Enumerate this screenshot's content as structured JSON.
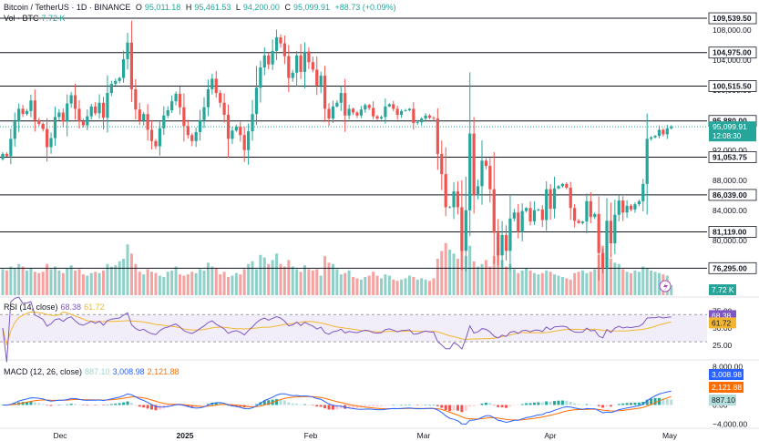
{
  "header": {
    "title": "Bitcoin / TetherUS · 1D · BINANCE",
    "o_label": "O",
    "o_value": "95,011.18",
    "h_label": "H",
    "h_value": "95,461.53",
    "l_label": "L",
    "l_value": "94,200.00",
    "c_label": "C",
    "c_value": "95,099.91",
    "change": "+88.73 (+0.09%)",
    "vol_label": "Vol · BTC",
    "vol_value": "7.72 K"
  },
  "rsi_legend": {
    "label": "RSI (14, close)",
    "v1": "68.38",
    "v2": "61.72"
  },
  "macd_legend": {
    "label": "MACD (12, 26, close)",
    "hist": "887.10",
    "macd": "3,008.98",
    "signal": "2,121.88"
  },
  "current_price": {
    "value": "95,099.91",
    "countdown": "12:08:30"
  },
  "colors": {
    "up": "#26a69a",
    "down": "#ef5350",
    "vol_up": "#8fd0c9",
    "vol_down": "#f4a3a1",
    "rsi": "#7e57c2",
    "rsi_ma": "#f2b632",
    "macd": "#2962ff",
    "signal": "#ff6d00"
  },
  "chart_data": [
    {
      "type": "candlestick",
      "title": "Bitcoin / TetherUS · 1D · BINANCE",
      "x_labels": [
        "Dec",
        "2025",
        "Feb",
        "Mar",
        "Apr",
        "May"
      ],
      "y_ticks": [
        108000,
        104000,
        100000,
        92000,
        88000,
        84000,
        80000
      ],
      "ylim": [
        75000,
        111000
      ],
      "horizontal_levels": [
        109539.5,
        104975.0,
        100515.5,
        95880.0,
        91053.75,
        86039.0,
        81119.0,
        76295.0
      ],
      "level_labels": [
        "109,539.50",
        "104,975.00",
        "100,515.50",
        "95,880.00",
        "91,053.75",
        "86,039.00",
        "81,119.00",
        "76,295.00"
      ],
      "y_tick_labels": [
        "108,000.00",
        "104,000.00",
        "100,000.00",
        "92,000.00",
        "88,000.00",
        "84,000.00",
        "80,000.00"
      ],
      "closes": [
        91500,
        91200,
        93500,
        95800,
        97500,
        96800,
        97200,
        98600,
        96000,
        95500,
        94800,
        92400,
        93600,
        96400,
        97000,
        95800,
        98200,
        99300,
        97500,
        95800,
        95300,
        96500,
        97800,
        96900,
        98300,
        96300,
        99600,
        100800,
        101200,
        101600,
        104100,
        106300,
        100100,
        97400,
        95900,
        96800,
        94700,
        93200,
        92500,
        94900,
        96600,
        97300,
        98500,
        99500,
        97700,
        95200,
        94000,
        93200,
        94400,
        96000,
        97700,
        100100,
        101500,
        99600,
        98300,
        96700,
        93500,
        94600,
        95100,
        94000,
        92000,
        94500,
        96800,
        100300,
        103000,
        104600,
        103400,
        105200,
        107000,
        106200,
        104500,
        101600,
        102300,
        104600,
        102400,
        105100,
        103700,
        102700,
        100600,
        101900,
        97500,
        96200,
        97800,
        98300,
        99600,
        96600,
        97500,
        97000,
        96600,
        97400,
        98000,
        97600,
        96500,
        96200,
        96400,
        97800,
        98100,
        97500,
        96700,
        97200,
        97300,
        97500,
        95600,
        95700,
        96200,
        96600,
        96300,
        96200,
        91500,
        88800,
        84400,
        84400,
        86500,
        84400,
        78600,
        84000,
        94200,
        86000,
        87200,
        90600,
        89900,
        86800,
        81000,
        78000,
        80700,
        78600,
        82900,
        83700,
        81100,
        83900,
        84300,
        82500,
        84000,
        84100,
        82700,
        86800,
        84200,
        86900,
        87200,
        87500,
        87000,
        84300,
        82600,
        82300,
        82500,
        85200,
        83100,
        83500,
        78300,
        76300,
        82600,
        79600,
        83400,
        85300,
        83700,
        84600,
        84100,
        84800,
        85200,
        87500,
        93500,
        93700,
        93900,
        94700,
        94100,
        94900,
        95100
      ],
      "current_price": 95099.91
    },
    {
      "type": "bar",
      "title": "Vol · BTC",
      "values_k": [
        20,
        19,
        22,
        21,
        24,
        22,
        19,
        21,
        18,
        17,
        18,
        24,
        20,
        22,
        19,
        17,
        21,
        23,
        19,
        20,
        16,
        15,
        17,
        18,
        17,
        19,
        24,
        22,
        23,
        26,
        28,
        39,
        32,
        24,
        18,
        16,
        20,
        18,
        17,
        15,
        14,
        18,
        19,
        22,
        16,
        15,
        16,
        18,
        17,
        20,
        19,
        25,
        22,
        21,
        16,
        18,
        14,
        15,
        17,
        16,
        20,
        24,
        26,
        20,
        31,
        29,
        24,
        27,
        32,
        24,
        22,
        27,
        22,
        20,
        18,
        23,
        20,
        19,
        20,
        15,
        30,
        25,
        24,
        20,
        16,
        17,
        19,
        14,
        13,
        12,
        14,
        15,
        18,
        15,
        13,
        16,
        15,
        12,
        11,
        12,
        13,
        15,
        14,
        12,
        13,
        12,
        11,
        13,
        28,
        34,
        40,
        35,
        32,
        28,
        46,
        30,
        38,
        26,
        22,
        24,
        27,
        22,
        30,
        35,
        27,
        22,
        24,
        20,
        17,
        19,
        21,
        19,
        17,
        16,
        17,
        19,
        18,
        16,
        15,
        14,
        13,
        12,
        17,
        18,
        19,
        17,
        18,
        20,
        31,
        38,
        33,
        28,
        25,
        24,
        20,
        18,
        17,
        19,
        18,
        22,
        21,
        19,
        18,
        17,
        16,
        15,
        7.72
      ],
      "last_value_label": "7.72 K"
    },
    {
      "type": "line",
      "title": "RSI (14, close)",
      "ylim": [
        10,
        85
      ],
      "y_ticks": [
        75,
        50,
        25
      ],
      "band_upper": 70,
      "band_lower": 30,
      "series": [
        {
          "name": "RSI",
          "last": 68.38
        },
        {
          "name": "RSI MA",
          "last": 61.72
        }
      ]
    },
    {
      "type": "line",
      "title": "MACD (12, 26, close)",
      "ylim": [
        -4500,
        8500
      ],
      "y_ticks": [
        8000,
        4000,
        0,
        -4000
      ],
      "y_tick_labels": [
        "8,000.00",
        "",
        "0.00",
        "−4,000.00"
      ],
      "series": [
        {
          "name": "MACD",
          "last": 3008.98
        },
        {
          "name": "Signal",
          "last": 2121.88
        },
        {
          "name": "Histogram",
          "last": 887.1
        }
      ]
    }
  ]
}
